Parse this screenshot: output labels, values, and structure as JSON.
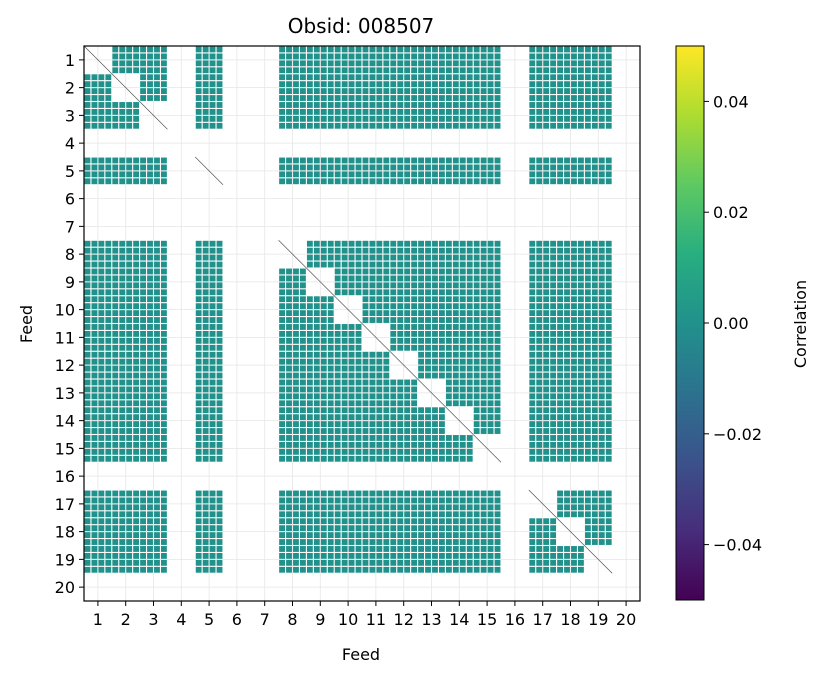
{
  "chart_data": {
    "type": "heatmap",
    "title": "Obsid: 008507",
    "xlabel": "Feed",
    "ylabel": "Feed",
    "feeds": [
      1,
      2,
      3,
      4,
      5,
      6,
      7,
      8,
      9,
      10,
      11,
      12,
      13,
      14,
      15,
      16,
      17,
      18,
      19,
      20
    ],
    "x_tick_labels": [
      "1",
      "2",
      "3",
      "4",
      "5",
      "6",
      "7",
      "8",
      "9",
      "10",
      "11",
      "12",
      "13",
      "14",
      "15",
      "16",
      "17",
      "18",
      "19",
      "20"
    ],
    "y_tick_labels": [
      "1",
      "2",
      "3",
      "4",
      "5",
      "6",
      "7",
      "8",
      "9",
      "10",
      "11",
      "12",
      "13",
      "14",
      "15",
      "16",
      "17",
      "18",
      "19",
      "20"
    ],
    "active_feeds": [
      1,
      2,
      3,
      5,
      8,
      9,
      10,
      11,
      12,
      13,
      14,
      15,
      17,
      18,
      19
    ],
    "inactive_feeds": [
      4,
      6,
      7,
      16,
      20
    ],
    "cell_value": 0.0,
    "diagonal_value": null,
    "grid": true,
    "colorbar": {
      "label": "Correlation",
      "colormap": "viridis",
      "vmin": -0.05,
      "vmax": 0.05,
      "ticks": [
        -0.04,
        -0.02,
        0.0,
        0.02,
        0.04
      ],
      "tick_labels": [
        "−0.04",
        "−0.02",
        "0.00",
        "0.02",
        "0.04"
      ]
    },
    "colors": {
      "cell": "#21918c",
      "viridis_stops": [
        "#440154",
        "#472d7b",
        "#3b528b",
        "#2c728e",
        "#21918c",
        "#28ae80",
        "#5ec962",
        "#addc30",
        "#fde725"
      ]
    }
  }
}
